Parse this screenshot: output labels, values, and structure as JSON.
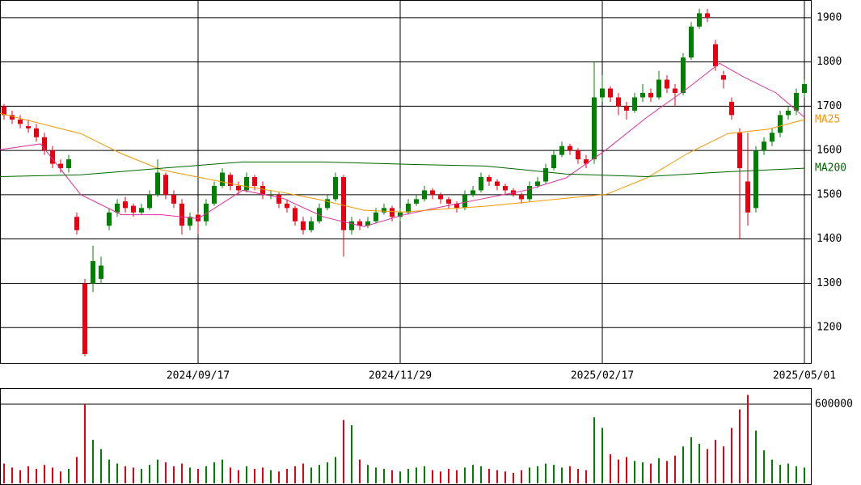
{
  "chart_data": [
    {
      "type": "candlestick",
      "up_color": "#008000",
      "down_color": "#e60012",
      "xlim": [
        0,
        100
      ],
      "xticks": [
        {
          "value": 24.5,
          "label": "2024/09/17"
        },
        {
          "value": 49.5,
          "label": "2024/11/29"
        },
        {
          "value": 74.5,
          "label": "2025/02/17"
        },
        {
          "value": 99.5,
          "label": "2025/05/01"
        }
      ],
      "ylim": [
        1120,
        1940
      ],
      "yticks": [
        1200,
        1300,
        1400,
        1500,
        1600,
        1700,
        1800,
        1900
      ],
      "grid": true,
      "ohlc": [
        [
          1700,
          1705,
          1670,
          1680
        ],
        [
          1680,
          1690,
          1660,
          1670
        ],
        [
          1670,
          1680,
          1650,
          1660
        ],
        [
          1655,
          1670,
          1640,
          1650
        ],
        [
          1650,
          1660,
          1620,
          1630
        ],
        [
          1630,
          1640,
          1590,
          1600
        ],
        [
          1600,
          1610,
          1560,
          1570
        ],
        [
          1570,
          1580,
          1550,
          1560
        ],
        [
          1560,
          1590,
          1550,
          1580
        ],
        [
          1450,
          1460,
          1410,
          1420
        ],
        [
          1300,
          1310,
          1135,
          1140
        ],
        [
          1300,
          1385,
          1280,
          1350
        ],
        [
          1310,
          1360,
          1300,
          1340
        ],
        [
          1430,
          1470,
          1420,
          1460
        ],
        [
          1460,
          1490,
          1450,
          1480
        ],
        [
          1485,
          1495,
          1460,
          1470
        ],
        [
          1475,
          1480,
          1450,
          1460
        ],
        [
          1460,
          1480,
          1455,
          1470
        ],
        [
          1470,
          1510,
          1465,
          1500
        ],
        [
          1500,
          1580,
          1495,
          1550
        ],
        [
          1545,
          1550,
          1490,
          1500
        ],
        [
          1500,
          1510,
          1470,
          1480
        ],
        [
          1480,
          1490,
          1410,
          1430
        ],
        [
          1430,
          1460,
          1420,
          1450
        ],
        [
          1455,
          1460,
          1410,
          1440
        ],
        [
          1440,
          1490,
          1430,
          1480
        ],
        [
          1480,
          1530,
          1475,
          1520
        ],
        [
          1520,
          1560,
          1515,
          1550
        ],
        [
          1545,
          1550,
          1510,
          1520
        ],
        [
          1520,
          1530,
          1500,
          1510
        ],
        [
          1510,
          1550,
          1505,
          1540
        ],
        [
          1540,
          1545,
          1510,
          1520
        ],
        [
          1520,
          1530,
          1490,
          1500
        ],
        [
          1500,
          1510,
          1490,
          1500
        ],
        [
          1500,
          1505,
          1470,
          1480
        ],
        [
          1480,
          1490,
          1460,
          1470
        ],
        [
          1470,
          1475,
          1430,
          1440
        ],
        [
          1440,
          1450,
          1410,
          1420
        ],
        [
          1420,
          1450,
          1415,
          1440
        ],
        [
          1440,
          1480,
          1435,
          1470
        ],
        [
          1470,
          1500,
          1465,
          1490
        ],
        [
          1490,
          1550,
          1485,
          1540
        ],
        [
          1540,
          1545,
          1360,
          1420
        ],
        [
          1420,
          1450,
          1410,
          1440
        ],
        [
          1440,
          1445,
          1420,
          1430
        ],
        [
          1430,
          1450,
          1425,
          1440
        ],
        [
          1440,
          1470,
          1435,
          1460
        ],
        [
          1460,
          1480,
          1455,
          1470
        ],
        [
          1470,
          1475,
          1440,
          1450
        ],
        [
          1450,
          1470,
          1440,
          1460
        ],
        [
          1460,
          1490,
          1455,
          1480
        ],
        [
          1480,
          1500,
          1475,
          1490
        ],
        [
          1490,
          1520,
          1485,
          1510
        ],
        [
          1510,
          1515,
          1490,
          1500
        ],
        [
          1500,
          1505,
          1480,
          1490
        ],
        [
          1490,
          1495,
          1470,
          1480
        ],
        [
          1480,
          1485,
          1460,
          1470
        ],
        [
          1470,
          1510,
          1465,
          1500
        ],
        [
          1500,
          1520,
          1495,
          1510
        ],
        [
          1510,
          1550,
          1505,
          1540
        ],
        [
          1540,
          1545,
          1520,
          1530
        ],
        [
          1530,
          1535,
          1510,
          1520
        ],
        [
          1520,
          1525,
          1500,
          1510
        ],
        [
          1510,
          1515,
          1495,
          1500
        ],
        [
          1500,
          1505,
          1480,
          1490
        ],
        [
          1490,
          1530,
          1485,
          1520
        ],
        [
          1520,
          1540,
          1515,
          1530
        ],
        [
          1530,
          1570,
          1525,
          1560
        ],
        [
          1560,
          1600,
          1555,
          1590
        ],
        [
          1590,
          1620,
          1585,
          1610
        ],
        [
          1610,
          1615,
          1590,
          1600
        ],
        [
          1600,
          1605,
          1570,
          1580
        ],
        [
          1580,
          1590,
          1560,
          1570
        ],
        [
          1580,
          1800,
          1570,
          1720
        ],
        [
          1720,
          1770,
          1710,
          1740
        ],
        [
          1740,
          1745,
          1710,
          1720
        ],
        [
          1720,
          1730,
          1680,
          1700
        ],
        [
          1700,
          1710,
          1670,
          1690
        ],
        [
          1690,
          1730,
          1685,
          1720
        ],
        [
          1720,
          1750,
          1710,
          1730
        ],
        [
          1730,
          1740,
          1710,
          1720
        ],
        [
          1720,
          1780,
          1715,
          1760
        ],
        [
          1760,
          1770,
          1730,
          1740
        ],
        [
          1740,
          1750,
          1700,
          1730
        ],
        [
          1730,
          1820,
          1725,
          1810
        ],
        [
          1810,
          1890,
          1805,
          1880
        ],
        [
          1880,
          1920,
          1875,
          1910
        ],
        [
          1910,
          1920,
          1890,
          1900
        ],
        [
          1840,
          1850,
          1780,
          1790
        ],
        [
          1770,
          1780,
          1740,
          1760
        ],
        [
          1710,
          1720,
          1670,
          1680
        ],
        [
          1640,
          1650,
          1400,
          1560
        ],
        [
          1530,
          1640,
          1430,
          1460
        ],
        [
          1470,
          1610,
          1460,
          1600
        ],
        [
          1600,
          1630,
          1590,
          1620
        ],
        [
          1620,
          1650,
          1610,
          1640
        ],
        [
          1640,
          1690,
          1630,
          1680
        ],
        [
          1680,
          1700,
          1670,
          1690
        ],
        [
          1690,
          1740,
          1680,
          1730
        ],
        [
          1730,
          1760,
          1720,
          1750
        ]
      ],
      "series": [
        {
          "color": "#e0309a",
          "x": [
            0,
            5,
            10,
            15,
            20,
            24.5,
            30,
            35,
            40,
            45,
            50,
            55,
            60,
            65,
            70,
            75,
            80,
            85,
            89,
            92,
            96,
            99.5
          ],
          "values": [
            1602,
            1615,
            1500,
            1455,
            1455,
            1446,
            1510,
            1492,
            1450,
            1428,
            1455,
            1474,
            1492,
            1510,
            1538,
            1602,
            1675,
            1740,
            1797,
            1766,
            1730,
            1675
          ]
        },
        {
          "name": "MA25",
          "color": "#f39800",
          "x": [
            0,
            10,
            15,
            20,
            25,
            30,
            35,
            40,
            45,
            50,
            55,
            60,
            65,
            70,
            75,
            80,
            85,
            90,
            95,
            99.5
          ],
          "values": [
            1684,
            1638,
            1593,
            1556,
            1538,
            1520,
            1505,
            1487,
            1465,
            1461,
            1468,
            1474,
            1483,
            1492,
            1501,
            1538,
            1593,
            1638,
            1648,
            1670
          ]
        },
        {
          "name": "MA200",
          "color": "#006400",
          "x": [
            0,
            10,
            20,
            30,
            40,
            50,
            60,
            70,
            80,
            90,
            99.5
          ],
          "values": [
            1541,
            1545,
            1560,
            1574,
            1574,
            1569,
            1565,
            1547,
            1541,
            1552,
            1560
          ]
        }
      ]
    },
    {
      "type": "bar",
      "xlim": [
        0,
        100
      ],
      "ylim": [
        0,
        722000
      ],
      "yticks": [
        600000
      ],
      "values": [
        150000,
        120000,
        100000,
        130000,
        110000,
        140000,
        120000,
        90000,
        110000,
        200000,
        600000,
        330000,
        260000,
        180000,
        150000,
        130000,
        120000,
        110000,
        140000,
        180000,
        160000,
        130000,
        150000,
        120000,
        110000,
        130000,
        160000,
        180000,
        120000,
        100000,
        130000,
        110000,
        120000,
        100000,
        90000,
        110000,
        130000,
        150000,
        120000,
        140000,
        160000,
        200000,
        480000,
        440000,
        180000,
        140000,
        120000,
        110000,
        100000,
        90000,
        110000,
        120000,
        130000,
        100000,
        90000,
        110000,
        100000,
        120000,
        140000,
        130000,
        110000,
        100000,
        90000,
        80000,
        100000,
        120000,
        130000,
        150000,
        140000,
        120000,
        130000,
        110000,
        100000,
        500000,
        420000,
        220000,
        180000,
        200000,
        170000,
        160000,
        150000,
        190000,
        170000,
        210000,
        280000,
        350000,
        300000,
        260000,
        330000,
        280000,
        420000,
        560000,
        670000,
        400000,
        250000,
        180000,
        140000,
        150000,
        130000,
        120000
      ]
    }
  ]
}
